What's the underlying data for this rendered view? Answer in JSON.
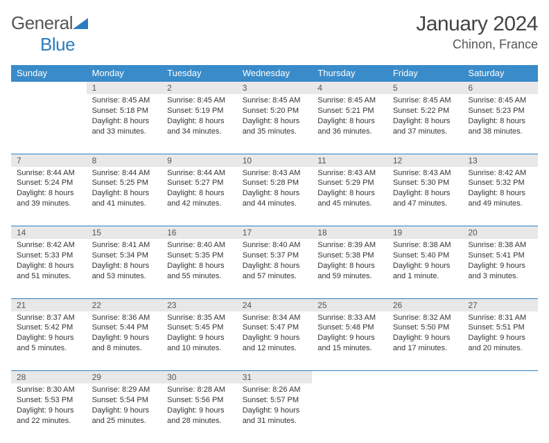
{
  "logo": {
    "part1": "General",
    "part2": "Blue"
  },
  "title": "January 2024",
  "location": "Chinon, France",
  "colors": {
    "header_bg": "#3a8bc9",
    "header_text": "#ffffff",
    "daynum_bg": "#e8e8e8",
    "row_border": "#2b7cc1",
    "body_text": "#333333",
    "logo_gray": "#555555",
    "logo_blue": "#2b7cc1"
  },
  "dayNames": [
    "Sunday",
    "Monday",
    "Tuesday",
    "Wednesday",
    "Thursday",
    "Friday",
    "Saturday"
  ],
  "weeks": [
    [
      null,
      {
        "n": "1",
        "sr": "8:45 AM",
        "ss": "5:18 PM",
        "dl": "8 hours and 33 minutes."
      },
      {
        "n": "2",
        "sr": "8:45 AM",
        "ss": "5:19 PM",
        "dl": "8 hours and 34 minutes."
      },
      {
        "n": "3",
        "sr": "8:45 AM",
        "ss": "5:20 PM",
        "dl": "8 hours and 35 minutes."
      },
      {
        "n": "4",
        "sr": "8:45 AM",
        "ss": "5:21 PM",
        "dl": "8 hours and 36 minutes."
      },
      {
        "n": "5",
        "sr": "8:45 AM",
        "ss": "5:22 PM",
        "dl": "8 hours and 37 minutes."
      },
      {
        "n": "6",
        "sr": "8:45 AM",
        "ss": "5:23 PM",
        "dl": "8 hours and 38 minutes."
      }
    ],
    [
      {
        "n": "7",
        "sr": "8:44 AM",
        "ss": "5:24 PM",
        "dl": "8 hours and 39 minutes."
      },
      {
        "n": "8",
        "sr": "8:44 AM",
        "ss": "5:25 PM",
        "dl": "8 hours and 41 minutes."
      },
      {
        "n": "9",
        "sr": "8:44 AM",
        "ss": "5:27 PM",
        "dl": "8 hours and 42 minutes."
      },
      {
        "n": "10",
        "sr": "8:43 AM",
        "ss": "5:28 PM",
        "dl": "8 hours and 44 minutes."
      },
      {
        "n": "11",
        "sr": "8:43 AM",
        "ss": "5:29 PM",
        "dl": "8 hours and 45 minutes."
      },
      {
        "n": "12",
        "sr": "8:43 AM",
        "ss": "5:30 PM",
        "dl": "8 hours and 47 minutes."
      },
      {
        "n": "13",
        "sr": "8:42 AM",
        "ss": "5:32 PM",
        "dl": "8 hours and 49 minutes."
      }
    ],
    [
      {
        "n": "14",
        "sr": "8:42 AM",
        "ss": "5:33 PM",
        "dl": "8 hours and 51 minutes."
      },
      {
        "n": "15",
        "sr": "8:41 AM",
        "ss": "5:34 PM",
        "dl": "8 hours and 53 minutes."
      },
      {
        "n": "16",
        "sr": "8:40 AM",
        "ss": "5:35 PM",
        "dl": "8 hours and 55 minutes."
      },
      {
        "n": "17",
        "sr": "8:40 AM",
        "ss": "5:37 PM",
        "dl": "8 hours and 57 minutes."
      },
      {
        "n": "18",
        "sr": "8:39 AM",
        "ss": "5:38 PM",
        "dl": "8 hours and 59 minutes."
      },
      {
        "n": "19",
        "sr": "8:38 AM",
        "ss": "5:40 PM",
        "dl": "9 hours and 1 minute."
      },
      {
        "n": "20",
        "sr": "8:38 AM",
        "ss": "5:41 PM",
        "dl": "9 hours and 3 minutes."
      }
    ],
    [
      {
        "n": "21",
        "sr": "8:37 AM",
        "ss": "5:42 PM",
        "dl": "9 hours and 5 minutes."
      },
      {
        "n": "22",
        "sr": "8:36 AM",
        "ss": "5:44 PM",
        "dl": "9 hours and 8 minutes."
      },
      {
        "n": "23",
        "sr": "8:35 AM",
        "ss": "5:45 PM",
        "dl": "9 hours and 10 minutes."
      },
      {
        "n": "24",
        "sr": "8:34 AM",
        "ss": "5:47 PM",
        "dl": "9 hours and 12 minutes."
      },
      {
        "n": "25",
        "sr": "8:33 AM",
        "ss": "5:48 PM",
        "dl": "9 hours and 15 minutes."
      },
      {
        "n": "26",
        "sr": "8:32 AM",
        "ss": "5:50 PM",
        "dl": "9 hours and 17 minutes."
      },
      {
        "n": "27",
        "sr": "8:31 AM",
        "ss": "5:51 PM",
        "dl": "9 hours and 20 minutes."
      }
    ],
    [
      {
        "n": "28",
        "sr": "8:30 AM",
        "ss": "5:53 PM",
        "dl": "9 hours and 22 minutes."
      },
      {
        "n": "29",
        "sr": "8:29 AM",
        "ss": "5:54 PM",
        "dl": "9 hours and 25 minutes."
      },
      {
        "n": "30",
        "sr": "8:28 AM",
        "ss": "5:56 PM",
        "dl": "9 hours and 28 minutes."
      },
      {
        "n": "31",
        "sr": "8:26 AM",
        "ss": "5:57 PM",
        "dl": "9 hours and 31 minutes."
      },
      null,
      null,
      null
    ]
  ],
  "labels": {
    "sunrise": "Sunrise:",
    "sunset": "Sunset:",
    "daylight": "Daylight:"
  }
}
